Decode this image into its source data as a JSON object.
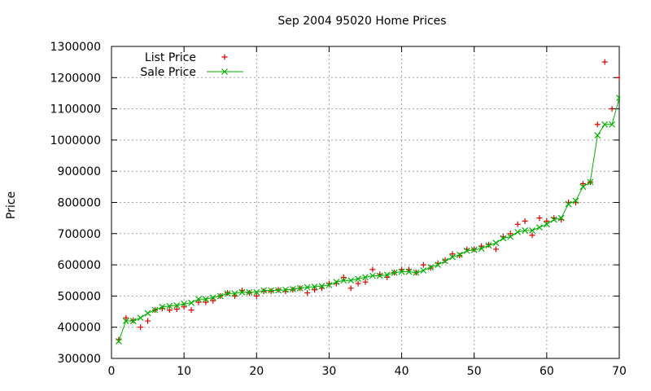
{
  "chart_data": {
    "type": "line",
    "title": "Sep 2004 95020 Home Prices",
    "xlabel": "",
    "ylabel": "Price",
    "xlim": [
      0,
      70
    ],
    "ylim": [
      300000,
      1300000
    ],
    "xticks": [
      "0",
      "10",
      "20",
      "30",
      "40",
      "50",
      "60",
      "70"
    ],
    "yticks": [
      "300000",
      "400000",
      "500000",
      "600000",
      "700000",
      "800000",
      "900000",
      "1000000",
      "1100000",
      "1200000",
      "1300000"
    ],
    "grid": true,
    "legend_position": "top-left",
    "x": [
      1,
      2,
      3,
      4,
      5,
      6,
      7,
      8,
      9,
      10,
      11,
      12,
      13,
      14,
      15,
      16,
      17,
      18,
      19,
      20,
      21,
      22,
      23,
      24,
      25,
      26,
      27,
      28,
      29,
      30,
      31,
      32,
      33,
      34,
      35,
      36,
      37,
      38,
      39,
      40,
      41,
      42,
      43,
      44,
      45,
      46,
      47,
      48,
      49,
      50,
      51,
      52,
      53,
      54,
      55,
      56,
      57,
      58,
      59,
      60,
      61,
      62,
      63,
      64,
      65,
      66,
      67,
      68,
      69,
      70
    ],
    "series": [
      {
        "name": "List Price",
        "marker": "plus",
        "color": "#e00000",
        "values": [
          360000,
          430000,
          422000,
          400000,
          420000,
          455000,
          460000,
          455000,
          458000,
          465000,
          455000,
          480000,
          480000,
          485000,
          500000,
          510000,
          500000,
          518000,
          510000,
          500000,
          515000,
          515000,
          520000,
          515000,
          520000,
          525000,
          510000,
          520000,
          525000,
          540000,
          540000,
          560000,
          525000,
          540000,
          545000,
          585000,
          570000,
          560000,
          575000,
          585000,
          585000,
          575000,
          600000,
          590000,
          605000,
          615000,
          635000,
          630000,
          650000,
          650000,
          660000,
          665000,
          650000,
          690000,
          700000,
          730000,
          740000,
          695000,
          750000,
          740000,
          750000,
          745000,
          800000,
          800000,
          860000,
          865000,
          1050000,
          1250000,
          1100000,
          1200000
        ]
      },
      {
        "name": "Sale Price",
        "marker": "x",
        "color": "#00b000",
        "values": [
          355000,
          420000,
          420000,
          430000,
          445000,
          455000,
          465000,
          468000,
          470000,
          475000,
          478000,
          490000,
          490000,
          495000,
          500000,
          508000,
          508000,
          512000,
          512000,
          512000,
          518000,
          518000,
          518000,
          520000,
          522000,
          525000,
          528000,
          530000,
          532000,
          535000,
          545000,
          550000,
          550000,
          555000,
          560000,
          565000,
          565000,
          568000,
          575000,
          578000,
          578000,
          575000,
          582000,
          592000,
          600000,
          612000,
          625000,
          632000,
          645000,
          648000,
          652000,
          662000,
          670000,
          685000,
          690000,
          705000,
          710000,
          710000,
          720000,
          730000,
          745000,
          750000,
          795000,
          805000,
          850000,
          865000,
          1015000,
          1050000,
          1050000,
          1135000
        ]
      }
    ]
  }
}
